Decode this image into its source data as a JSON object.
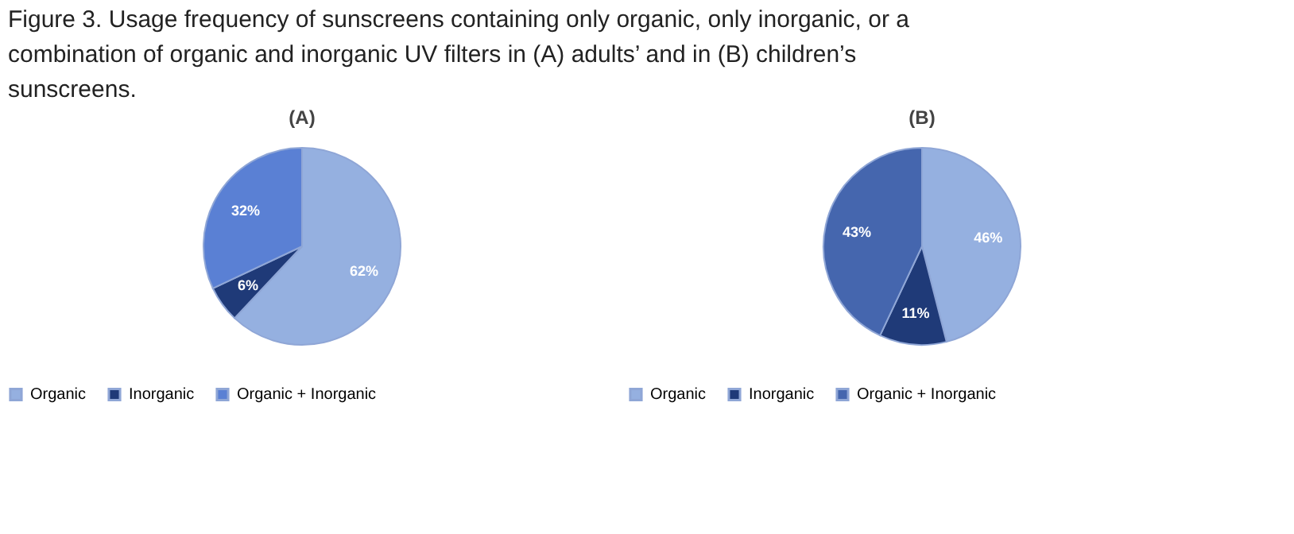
{
  "chart_data": [
    {
      "type": "pie",
      "title": "(A)",
      "annotations": [
        "Figure 3. Usage frequency of sunscreens containing only organic, only inorganic, or a combination of organic and inorganic UV filters in (A) adults’ and in (B) children’s sunscreens."
      ],
      "categories": [
        "Organic",
        "Inorganic",
        "Organic + Inorganic"
      ],
      "values": [
        62,
        6,
        32
      ],
      "value_labels": [
        "62%",
        "6%",
        "32%"
      ],
      "colors": [
        "#95b0e0",
        "#1f3a78",
        "#5a80d4"
      ],
      "legend": "bottom"
    },
    {
      "type": "pie",
      "title": "(B)",
      "categories": [
        "Organic",
        "Inorganic",
        "Organic + Inorganic"
      ],
      "values": [
        46,
        11,
        43
      ],
      "value_labels": [
        "46%",
        "11%",
        "43%"
      ],
      "colors": [
        "#95b0e0",
        "#1f3a78",
        "#4566ae"
      ],
      "legend": "bottom"
    }
  ]
}
